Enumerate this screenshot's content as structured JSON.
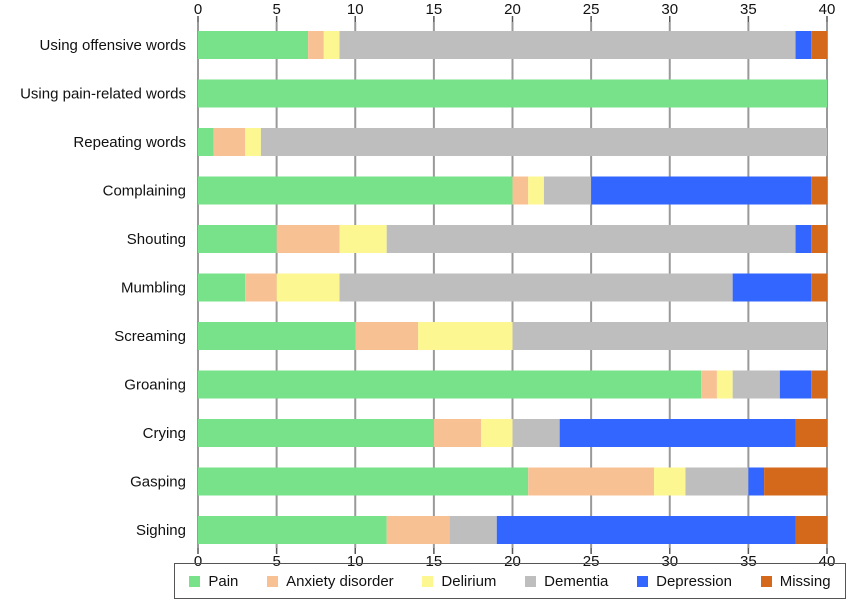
{
  "chart_data": {
    "type": "bar",
    "orientation": "horizontal",
    "stacked": true,
    "categories": [
      "Using offensive words",
      "Using pain-related words",
      "Repeating words",
      "Complaining",
      "Shouting",
      "Mumbling",
      "Screaming",
      "Groaning",
      "Crying",
      "Gasping",
      "Sighing"
    ],
    "series": [
      {
        "name": "Pain",
        "color": "#77e28a",
        "values": [
          7,
          40,
          1,
          20,
          5,
          3,
          10,
          32,
          15,
          21,
          12
        ]
      },
      {
        "name": "Anxiety disorder",
        "color": "#f8c194",
        "values": [
          1,
          0,
          2,
          1,
          4,
          2,
          4,
          1,
          3,
          8,
          4
        ]
      },
      {
        "name": "Delirium",
        "color": "#fdf791",
        "values": [
          1,
          0,
          1,
          1,
          3,
          4,
          6,
          1,
          2,
          2,
          0
        ]
      },
      {
        "name": "Dementia",
        "color": "#bebebe",
        "values": [
          29,
          0,
          36,
          3,
          26,
          25,
          20,
          3,
          3,
          4,
          3
        ]
      },
      {
        "name": "Depression",
        "color": "#3366ff",
        "values": [
          1,
          0,
          0,
          14,
          1,
          5,
          0,
          2,
          15,
          1,
          19
        ]
      },
      {
        "name": "Missing",
        "color": "#d4691c",
        "values": [
          1,
          0,
          0,
          1,
          1,
          1,
          0,
          1,
          2,
          4,
          2
        ]
      }
    ],
    "xlim": [
      0,
      40
    ],
    "xticks": [
      0,
      5,
      10,
      15,
      20,
      25,
      30,
      35,
      40
    ],
    "grid": true,
    "legend_position": "bottom"
  }
}
